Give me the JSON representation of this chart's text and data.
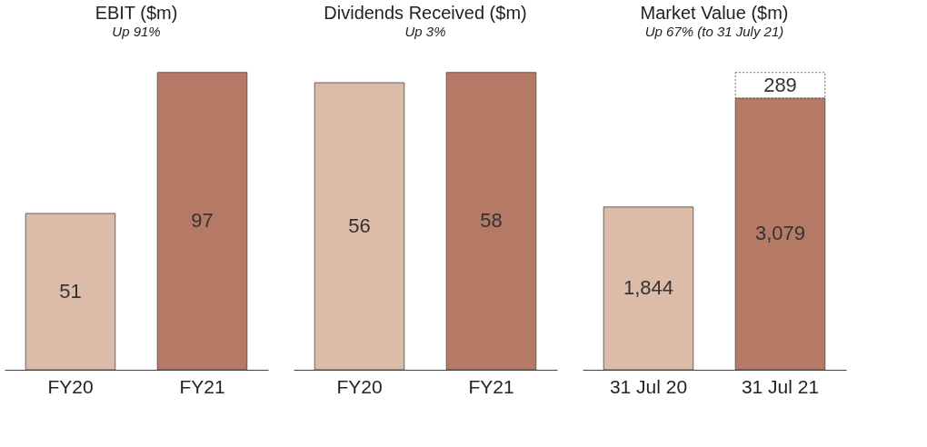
{
  "chart_data": [
    {
      "type": "bar",
      "title": "EBIT ($m)",
      "subtitle": "Up 91%",
      "categories": [
        "FY20",
        "FY21"
      ],
      "colors": [
        "#dcbca8",
        "#b47a66"
      ],
      "values": [
        51,
        97
      ],
      "data_labels": true,
      "grid": false
    },
    {
      "type": "bar",
      "title": "Dividends Received ($m)",
      "subtitle": "Up 3%",
      "categories": [
        "FY20",
        "FY21"
      ],
      "colors": [
        "#dcbca8",
        "#b47a66"
      ],
      "values": [
        56,
        58
      ],
      "data_labels": true,
      "grid": false
    },
    {
      "type": "bar",
      "title": "Market Value ($m)",
      "subtitle": "Up 67% (to 31 July 21)",
      "categories": [
        "31 Jul 20",
        "31 Jul 21"
      ],
      "stacked": true,
      "grid": false,
      "series": [
        {
          "colors": [
            "#dcbca8",
            "#b47a66"
          ],
          "values": [
            1844,
            3079
          ],
          "value_labels": [
            "1,844",
            "3,079"
          ]
        },
        {
          "color": "#ffffff",
          "line_style": "dotted",
          "values": [
            null,
            289
          ],
          "value_labels": [
            null,
            "289"
          ]
        }
      ]
    }
  ]
}
